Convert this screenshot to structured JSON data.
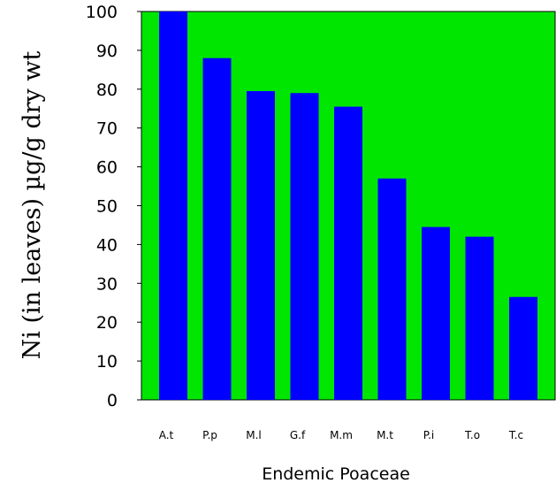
{
  "chart_data": {
    "type": "bar",
    "title": "",
    "xlabel": "Endemic Poaceae",
    "ylabel": "Ni (in leaves) µg/g dry wt",
    "categories": [
      "A.t",
      "P.p",
      "M.l",
      "G.f",
      "M.m",
      "M.t",
      "P.i",
      "T.o",
      "T.c"
    ],
    "values": [
      100,
      88,
      79.5,
      79,
      75.5,
      57,
      44.5,
      42,
      26.5
    ],
    "ylim": [
      0,
      100
    ],
    "yticks": [
      "0",
      "10",
      "20",
      "30",
      "40",
      "50",
      "60",
      "70",
      "80",
      "90",
      "100"
    ],
    "grid": false,
    "legend": "none",
    "colors": {
      "plot_background": "#00e600",
      "bar": "#0000ff",
      "axis": "#000000"
    }
  }
}
